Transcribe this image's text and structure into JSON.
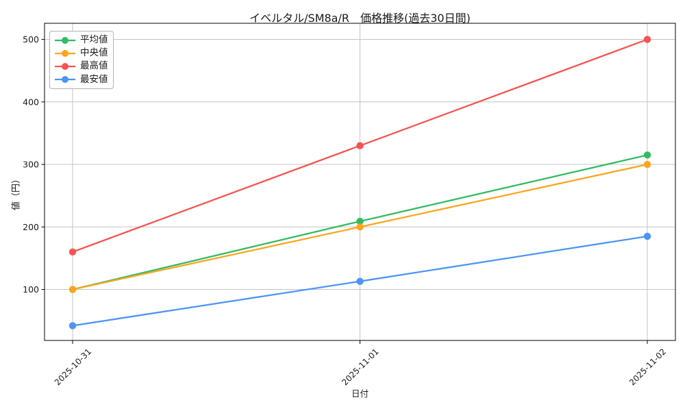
{
  "figure": {
    "title": "イベルタル/SM8a/R　価格推移(過去30日間)",
    "xlabel": "日付",
    "ylabel": "値（円）"
  },
  "chart_data": {
    "type": "line",
    "title": "イベルタル/SM8a/R　価格推移(過去30日間)",
    "xlabel": "日付",
    "ylabel": "値（円）",
    "categories": [
      "2025-10-31",
      "2025-11-01",
      "2025-11-02"
    ],
    "series": [
      {
        "name": "平均値",
        "color": "#33bb61",
        "values": [
          100,
          209,
          315
        ]
      },
      {
        "name": "中央値",
        "color": "#ffa41e",
        "values": [
          100,
          200,
          300
        ]
      },
      {
        "name": "最高値",
        "color": "#f65352",
        "values": [
          160,
          330,
          500
        ]
      },
      {
        "name": "最安値",
        "color": "#4d94f5",
        "values": [
          42,
          113,
          185
        ]
      }
    ],
    "yticks": [
      100,
      200,
      300,
      400,
      500
    ],
    "ylim": [
      18.4,
      525.8
    ],
    "grid": true,
    "legend_position": "upper-left",
    "x_tick_rotation": -45
  },
  "colors": {
    "background": "#ffffff",
    "grid": "#c3c3c3",
    "axis": "#000000",
    "text": "#1a1a1a",
    "legend_border": "#b1b1b1"
  }
}
